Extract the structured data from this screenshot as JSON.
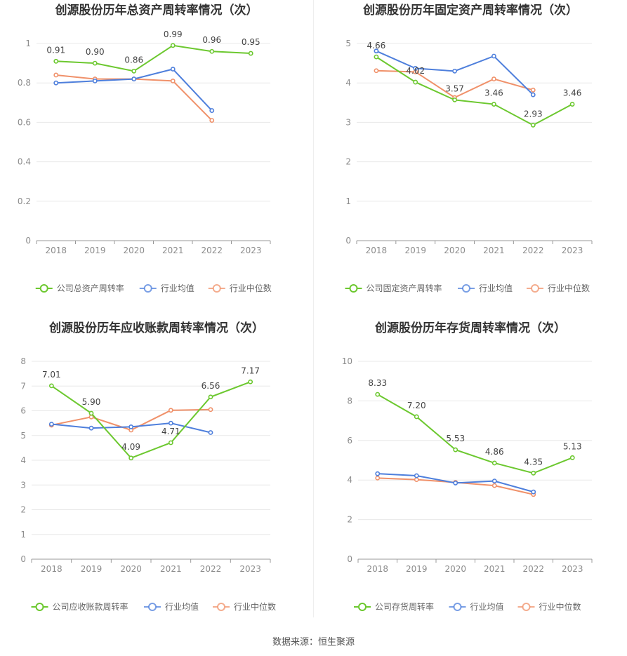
{
  "source_label": "数据来源：恒生聚源",
  "colors": {
    "company": "#6CC82F",
    "avg": "#4E7FDC",
    "median": "#F0916A",
    "grid": "#E8E8E8",
    "axis": "#999999"
  },
  "chart_data": [
    {
      "type": "line",
      "title": "创源股份历年总资产周转率情况（次）",
      "categories": [
        "2018",
        "2019",
        "2020",
        "2021",
        "2022",
        "2023"
      ],
      "ylim": [
        0,
        1
      ],
      "yticks": [
        "0",
        "0.2",
        "0.4",
        "0.6",
        "0.8",
        "1"
      ],
      "ytick_values": [
        0,
        0.2,
        0.4,
        0.6,
        0.8,
        1
      ],
      "grid": true,
      "legend_position": "bottom",
      "series": [
        {
          "name": "公司总资产周转率",
          "key": "company",
          "values": [
            0.91,
            0.9,
            0.86,
            0.99,
            0.96,
            0.95
          ],
          "labels": [
            "0.91",
            "0.90",
            "0.86",
            "0.99",
            "0.96",
            "0.95"
          ]
        },
        {
          "name": "行业均值",
          "key": "avg",
          "values": [
            0.8,
            0.81,
            0.82,
            0.87,
            0.66,
            null
          ]
        },
        {
          "name": "行业中位数",
          "key": "median",
          "values": [
            0.84,
            0.82,
            0.82,
            0.81,
            0.61,
            null
          ]
        }
      ]
    },
    {
      "type": "line",
      "title": "创源股份历年固定资产周转率情况（次）",
      "categories": [
        "2018",
        "2019",
        "2020",
        "2021",
        "2022",
        "2023"
      ],
      "ylim": [
        0,
        5
      ],
      "yticks": [
        "0",
        "1",
        "2",
        "3",
        "4",
        "5"
      ],
      "ytick_values": [
        0,
        1,
        2,
        3,
        4,
        5
      ],
      "grid": true,
      "legend_position": "bottom",
      "series": [
        {
          "name": "公司固定资产周转率",
          "key": "company",
          "values": [
            4.66,
            4.02,
            3.57,
            3.46,
            2.93,
            3.46
          ],
          "labels": [
            "4.66",
            "4.02",
            "3.57",
            "3.46",
            "2.93",
            "3.46"
          ]
        },
        {
          "name": "行业均值",
          "key": "avg",
          "values": [
            4.81,
            4.37,
            4.3,
            4.68,
            3.7,
            null
          ]
        },
        {
          "name": "行业中位数",
          "key": "median",
          "values": [
            4.31,
            4.28,
            3.63,
            4.1,
            3.82,
            null
          ]
        }
      ]
    },
    {
      "type": "line",
      "title": "创源股份历年应收账款周转率情况（次）",
      "categories": [
        "2018",
        "2019",
        "2020",
        "2021",
        "2022",
        "2023"
      ],
      "ylim": [
        0,
        8
      ],
      "yticks": [
        "0",
        "1",
        "2",
        "3",
        "4",
        "5",
        "6",
        "7",
        "8"
      ],
      "ytick_values": [
        0,
        1,
        2,
        3,
        4,
        5,
        6,
        7,
        8
      ],
      "grid": true,
      "legend_position": "bottom",
      "series": [
        {
          "name": "公司应收账款周转率",
          "key": "company",
          "values": [
            7.01,
            5.9,
            4.09,
            4.71,
            6.56,
            7.17
          ],
          "labels": [
            "7.01",
            "5.90",
            "4.09",
            "4.71",
            "6.56",
            "7.17"
          ]
        },
        {
          "name": "行业均值",
          "key": "avg",
          "values": [
            5.46,
            5.3,
            5.35,
            5.5,
            5.12,
            null
          ]
        },
        {
          "name": "行业中位数",
          "key": "median",
          "values": [
            5.42,
            5.75,
            5.22,
            6.02,
            6.05,
            null
          ]
        }
      ]
    },
    {
      "type": "line",
      "title": "创源股份历年存货周转率情况（次）",
      "categories": [
        "2018",
        "2019",
        "2020",
        "2021",
        "2022",
        "2023"
      ],
      "ylim": [
        0,
        10
      ],
      "yticks": [
        "0",
        "2",
        "4",
        "6",
        "8",
        "10"
      ],
      "ytick_values": [
        0,
        2,
        4,
        6,
        8,
        10
      ],
      "grid": true,
      "legend_position": "bottom",
      "series": [
        {
          "name": "公司存货周转率",
          "key": "company",
          "values": [
            8.33,
            7.2,
            5.53,
            4.86,
            4.35,
            5.13
          ],
          "labels": [
            "8.33",
            "7.20",
            "5.53",
            "4.86",
            "4.35",
            "5.13"
          ]
        },
        {
          "name": "行业均值",
          "key": "avg",
          "values": [
            4.32,
            4.22,
            3.85,
            3.95,
            3.4,
            null
          ]
        },
        {
          "name": "行业中位数",
          "key": "median",
          "values": [
            4.1,
            4.02,
            3.88,
            3.72,
            3.27,
            null
          ]
        }
      ]
    }
  ]
}
